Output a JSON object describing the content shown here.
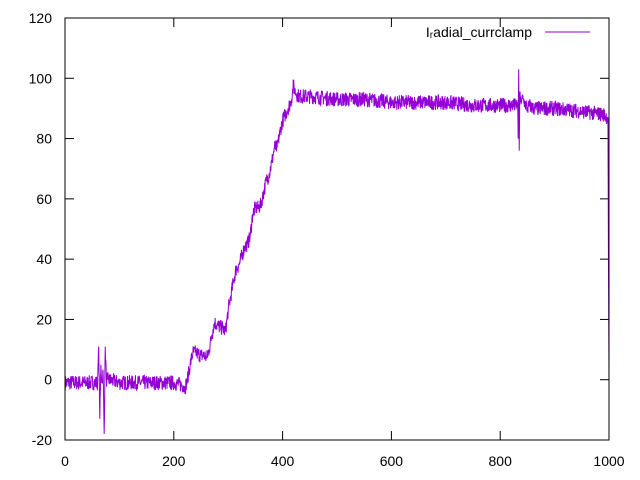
{
  "chart_data": {
    "type": "line",
    "title": "",
    "xlabel": "",
    "ylabel": "",
    "xlim": [
      0,
      1000
    ],
    "ylim": [
      -20,
      120
    ],
    "xticks": [
      0,
      200,
      400,
      600,
      800,
      1000
    ],
    "yticks": [
      -20,
      0,
      20,
      40,
      60,
      80,
      100,
      120
    ],
    "grid": false,
    "legend_position": "top-right",
    "series": [
      {
        "name": "I_radial_currclamp",
        "legend_text": "Iᵣadial_currclamp",
        "color": "#9400d3",
        "noise_amplitude": 2.5,
        "x": [
          0,
          60,
          62,
          64,
          66,
          68,
          70,
          72,
          74,
          76,
          78,
          80,
          100,
          150,
          200,
          218,
          220,
          225,
          230,
          235,
          240,
          250,
          258,
          260,
          265,
          270,
          275,
          280,
          290,
          295,
          300,
          305,
          310,
          315,
          320,
          330,
          335,
          340,
          345,
          350,
          355,
          360,
          370,
          375,
          380,
          385,
          390,
          395,
          400,
          410,
          415,
          418,
          420,
          422,
          425,
          430,
          440,
          450,
          500,
          550,
          600,
          650,
          700,
          750,
          800,
          830,
          832,
          833,
          834,
          835,
          836,
          837,
          838,
          840,
          845,
          850,
          855,
          860,
          900,
          950,
          990,
          998,
          999,
          1000
        ],
        "y": [
          -1,
          -1,
          11,
          -13,
          5,
          -1,
          3,
          -18,
          11,
          0,
          0,
          0,
          -1,
          -1,
          -1,
          -2,
          -3,
          0,
          5,
          9,
          9,
          8,
          8,
          7,
          10,
          15,
          19,
          18,
          17,
          16,
          23,
          28,
          33,
          37,
          38,
          44,
          45,
          47,
          55,
          57,
          57,
          58,
          66,
          68,
          72,
          77,
          77,
          82,
          86,
          90,
          92,
          95,
          98,
          96,
          95,
          94,
          94,
          94,
          93,
          93,
          92,
          92,
          92,
          91,
          91,
          91,
          92,
          80,
          103,
          76,
          95,
          92,
          93,
          93,
          92,
          90,
          91,
          90,
          90,
          89,
          88,
          87,
          40,
          0
        ]
      }
    ]
  }
}
